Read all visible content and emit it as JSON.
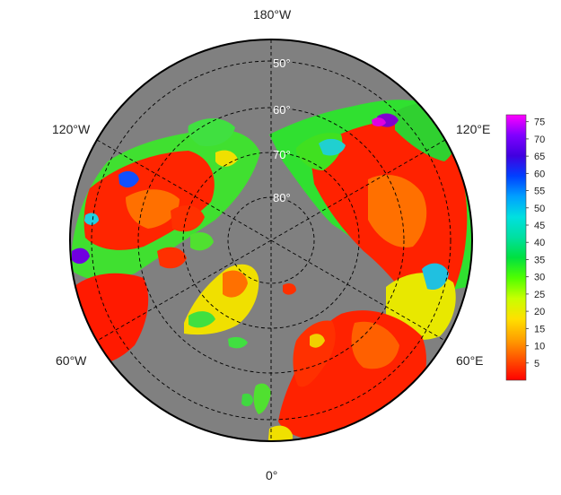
{
  "map": {
    "projection": "north-polar-stereographic",
    "ocean_color": "#808080",
    "grid_color": "#000000",
    "longitude_labels": [
      {
        "text": "180°W",
        "position": "top"
      },
      {
        "text": "120°W",
        "position": "upper-left"
      },
      {
        "text": "120°E",
        "position": "upper-right"
      },
      {
        "text": "60°W",
        "position": "lower-left"
      },
      {
        "text": "60°E",
        "position": "lower-right"
      },
      {
        "text": "0°",
        "position": "bottom"
      }
    ],
    "latitude_labels": [
      "50°",
      "60°",
      "70°",
      "80°"
    ],
    "latitude_label_color": "#ffffff"
  },
  "colorbar": {
    "ticks": [
      "75",
      "70",
      "65",
      "60",
      "55",
      "50",
      "45",
      "40",
      "35",
      "30",
      "25",
      "20",
      "15",
      "10",
      "5"
    ],
    "min": 0,
    "max": 77,
    "colors": [
      "#ff0000",
      "#ff5000",
      "#ffa000",
      "#ffe000",
      "#c8ff00",
      "#50ff00",
      "#00e040",
      "#00e0a0",
      "#00e0e0",
      "#00a0ff",
      "#0040ff",
      "#4000e0",
      "#8000ff",
      "#ff00ff"
    ]
  }
}
